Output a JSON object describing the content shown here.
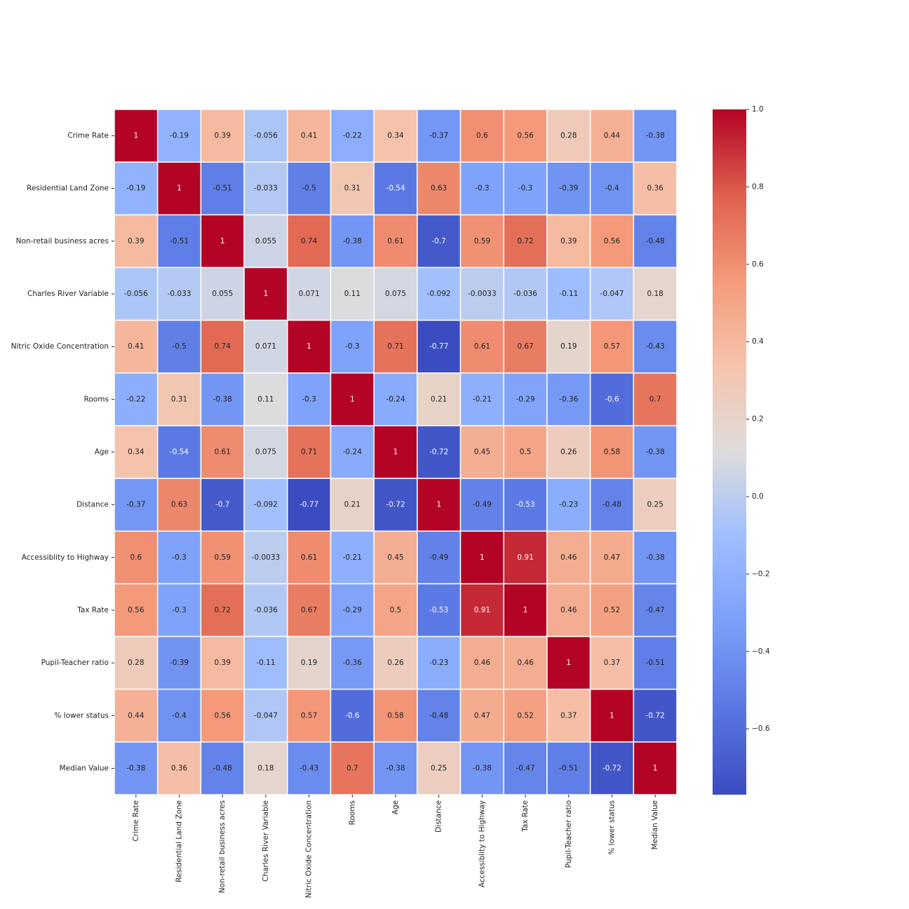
{
  "chart_data": {
    "type": "heatmap",
    "colormap": "coolwarm",
    "labels": [
      "Crime Rate",
      "Residential Land Zone",
      "Non-retail business acres",
      "Charles River Variable",
      "Nitric Oxide Concentration",
      "Rooms",
      "Age",
      "Distance",
      "Accessiblity to Highway",
      "Tax Rate",
      "Pupil-Teacher ratio",
      "% lower status",
      "Median Value"
    ],
    "matrix": [
      [
        1,
        -0.19,
        0.39,
        -0.056,
        0.41,
        -0.22,
        0.34,
        -0.37,
        0.6,
        0.56,
        0.28,
        0.44,
        -0.38
      ],
      [
        -0.19,
        1,
        -0.51,
        -0.033,
        -0.5,
        0.31,
        -0.54,
        0.63,
        -0.3,
        -0.3,
        -0.39,
        -0.4,
        0.36
      ],
      [
        0.39,
        -0.51,
        1,
        0.055,
        0.74,
        -0.38,
        0.61,
        -0.7,
        0.59,
        0.72,
        0.39,
        0.56,
        -0.48
      ],
      [
        -0.056,
        -0.033,
        0.055,
        1,
        0.071,
        0.11,
        0.075,
        -0.092,
        -0.0033,
        -0.036,
        -0.11,
        -0.047,
        0.18
      ],
      [
        0.41,
        -0.5,
        0.74,
        0.071,
        1,
        -0.3,
        0.71,
        -0.77,
        0.61,
        0.67,
        0.19,
        0.57,
        -0.43
      ],
      [
        -0.22,
        0.31,
        -0.38,
        0.11,
        -0.3,
        1,
        -0.24,
        0.21,
        -0.21,
        -0.29,
        -0.36,
        -0.6,
        0.7
      ],
      [
        0.34,
        -0.54,
        0.61,
        0.075,
        0.71,
        -0.24,
        1,
        -0.72,
        0.45,
        0.5,
        0.26,
        0.58,
        -0.38
      ],
      [
        -0.37,
        0.63,
        -0.7,
        -0.092,
        -0.77,
        0.21,
        -0.72,
        1,
        -0.49,
        -0.53,
        -0.23,
        -0.48,
        0.25
      ],
      [
        0.6,
        -0.3,
        0.59,
        -0.0033,
        0.61,
        -0.21,
        0.45,
        -0.49,
        1,
        0.91,
        0.46,
        0.47,
        -0.38
      ],
      [
        0.56,
        -0.3,
        0.72,
        -0.036,
        0.67,
        -0.29,
        0.5,
        -0.53,
        0.91,
        1,
        0.46,
        0.52,
        -0.47
      ],
      [
        0.28,
        -0.39,
        0.39,
        -0.11,
        0.19,
        -0.36,
        0.26,
        -0.23,
        0.46,
        0.46,
        1,
        0.37,
        -0.51
      ],
      [
        0.44,
        -0.4,
        0.56,
        -0.047,
        0.57,
        -0.6,
        0.58,
        -0.48,
        0.47,
        0.52,
        0.37,
        1,
        -0.72
      ],
      [
        -0.38,
        0.36,
        -0.48,
        0.18,
        -0.43,
        0.7,
        -0.38,
        0.25,
        -0.38,
        -0.47,
        -0.51,
        -0.72,
        1
      ]
    ],
    "clim": [
      -0.77,
      1
    ],
    "cticks": [
      {
        "value": -0.6,
        "label": "−0.6"
      },
      {
        "value": -0.4,
        "label": "−0.4"
      },
      {
        "value": -0.2,
        "label": "−0.2"
      },
      {
        "value": 0,
        "label": "0.0"
      },
      {
        "value": 0.2,
        "label": "0.2"
      },
      {
        "value": 0.4,
        "label": "0.4"
      },
      {
        "value": 0.6,
        "label": "0.6"
      },
      {
        "value": 0.8,
        "label": "0.8"
      },
      {
        "value": 1,
        "label": "1.0"
      }
    ]
  }
}
